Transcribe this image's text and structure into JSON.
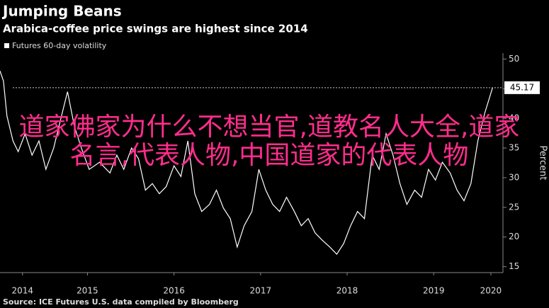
{
  "chart_data": {
    "type": "line",
    "title": "Jumping Beans",
    "subtitle": "Arabica-coffee price swings are highest since 2014",
    "y_label": "Percent",
    "source": "Source: ICE Futures U.S. data compiled by Bloomberg",
    "overlay_text": "道家佛家为什么不想当官,道教名人大全,道家名言,代表人物,中国道家的代表人物",
    "last_value": 45.17,
    "x": [
      2014.49,
      2014.53,
      2014.57,
      2014.64,
      2014.7,
      2014.78,
      2014.86,
      2014.94,
      2015.02,
      2015.11,
      2015.19,
      2015.27,
      2015.35,
      2015.43,
      2015.52,
      2015.64,
      2015.76,
      2015.84,
      2015.92,
      2016.01,
      2016.09,
      2016.17,
      2016.25,
      2016.33,
      2016.41,
      2016.5,
      2016.58,
      2016.66,
      2016.74,
      2016.82,
      2016.91,
      2016.99,
      2017.07,
      2017.15,
      2017.23,
      2017.31,
      2017.4,
      2017.48,
      2017.56,
      2017.64,
      2017.72,
      2017.8,
      2017.89,
      2017.97,
      2018.05,
      2018.13,
      2018.21,
      2018.3,
      2018.38,
      2018.46,
      2018.54,
      2018.62,
      2018.7,
      2018.74,
      2018.79,
      2018.87,
      2018.95,
      2019.03,
      2019.11,
      2019.19,
      2019.28,
      2019.36,
      2019.44,
      2019.52,
      2019.6,
      2019.69,
      2019.77,
      2019.85,
      2019.93,
      2020.01,
      2020.09,
      2020.18
    ],
    "series": [
      {
        "name": "Futures 60-day volatility",
        "color": "#ffffff",
        "values": [
          48,
          46.3,
          40.4,
          36.2,
          34.4,
          37.4,
          33.8,
          36.2,
          31.4,
          35,
          39.8,
          44.5,
          38.6,
          35,
          31.4,
          32.6,
          30.8,
          33.8,
          31.4,
          35,
          33.2,
          27.9,
          29,
          27.3,
          28.5,
          32,
          30.2,
          36.2,
          27.3,
          24.3,
          25.5,
          27.9,
          24.9,
          23.1,
          18.3,
          21.9,
          24.3,
          31.4,
          27.9,
          25.5,
          24.3,
          26.7,
          24.3,
          21.9,
          23.1,
          20.7,
          19.5,
          18.3,
          17.1,
          18.9,
          21.9,
          24.3,
          23.1,
          27.9,
          33.8,
          31.4,
          37.4,
          33.8,
          29,
          25.5,
          27.9,
          26.7,
          31.4,
          29.6,
          32.6,
          30.8,
          27.9,
          26.1,
          29,
          36.2,
          40.9,
          45.17
        ]
      }
    ],
    "xlim": [
      2014.49,
      2020.3
    ],
    "xticks": [
      {
        "value": 2014.75,
        "label": "2014"
      },
      {
        "value": 2015.5,
        "label": "2015"
      },
      {
        "value": 2016.5,
        "label": "2016"
      },
      {
        "value": 2017.5,
        "label": "2017"
      },
      {
        "value": 2018.5,
        "label": "2018"
      },
      {
        "value": 2019.5,
        "label": "2019"
      },
      {
        "value": 2020.16,
        "label": "2020"
      }
    ],
    "ylim": [
      14,
      51
    ],
    "yticks": [
      15,
      20,
      25,
      30,
      35,
      40,
      45,
      50
    ]
  }
}
